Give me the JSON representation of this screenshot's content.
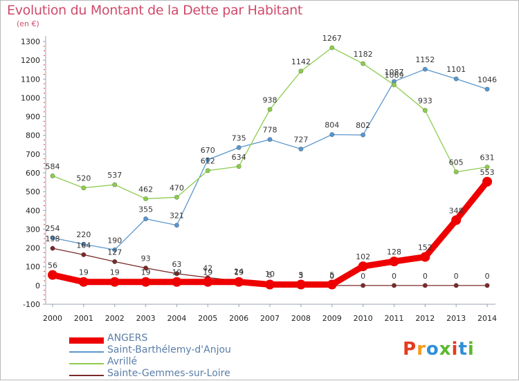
{
  "title": "Evolution du Montant de la Dette par Habitant",
  "ylabel": "(en €)",
  "logo": {
    "text": "Proxiti",
    "colors": [
      "#e23c1f",
      "#f59a1a",
      "#2f8fd8",
      "#5cb82e",
      "#e23c1f",
      "#2f8fd8",
      "#5cb82e"
    ]
  },
  "chart_data": {
    "type": "line",
    "x": [
      "2000",
      "2001",
      "2002",
      "2003",
      "2004",
      "2005",
      "2006",
      "2007",
      "2008",
      "2009",
      "2010",
      "2011",
      "2012",
      "2013",
      "2014"
    ],
    "yticks": [
      -100,
      0,
      100,
      200,
      300,
      400,
      500,
      600,
      700,
      800,
      900,
      1000,
      1100,
      1200,
      1300
    ],
    "ylim": [
      -100,
      1300
    ],
    "grid": false,
    "legend_position": "bottom-left",
    "series": [
      {
        "name": "ANGERS",
        "color": "#ee0000",
        "values": [
          56,
          19,
          19,
          19,
          19,
          19,
          19,
          5,
          5,
          5,
          102,
          128,
          152,
          348,
          553
        ],
        "labels": [
          "56",
          "19",
          "19",
          "19",
          "19",
          "19",
          "19",
          "5",
          "5",
          "5",
          "102",
          "128",
          "152",
          "348",
          "553"
        ]
      },
      {
        "name": "Saint-Barthélemy-d'Anjou",
        "color": "#5a96cc",
        "values": [
          254,
          220,
          190,
          355,
          321,
          670,
          735,
          778,
          727,
          804,
          802,
          1087,
          1152,
          1101,
          1046
        ],
        "labels": [
          "254",
          "220",
          "190",
          "355",
          "321",
          "670",
          "735",
          "778",
          "727",
          "804",
          "802",
          "1087",
          "1152",
          "1101",
          "1046"
        ]
      },
      {
        "name": "Avrillé",
        "color": "#8ccc4e",
        "values": [
          584,
          520,
          537,
          462,
          470,
          612,
          634,
          938,
          1142,
          1267,
          1182,
          1069,
          933,
          605,
          631
        ],
        "labels": [
          "584",
          "520",
          "537",
          "462",
          "470",
          "612",
          "634",
          "938",
          "1142",
          "1267",
          "1182",
          "1069",
          "933",
          "605",
          "631"
        ]
      },
      {
        "name": "Sainte-Gemmes-sur-Loire",
        "color": "#7a2a2a",
        "values": [
          198,
          164,
          127,
          93,
          63,
          42,
          24,
          10,
          3,
          0,
          0,
          0,
          0,
          0,
          0
        ],
        "labels": [
          "198",
          "164",
          "127",
          "93",
          "63",
          "42",
          "24",
          "10",
          "3",
          "0",
          "0",
          "0",
          "0",
          "0",
          "0"
        ]
      }
    ]
  }
}
